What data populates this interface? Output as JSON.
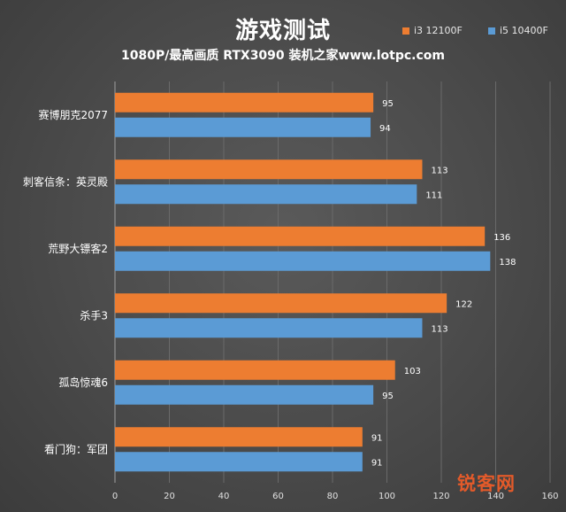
{
  "header": {
    "title": "游戏测试",
    "subtitle": "1080P/最高画质 RTX3090 装机之家www.lotpc.com"
  },
  "watermark": {
    "text": "锐客网"
  },
  "colors": {
    "i3_series": "#ed7d31",
    "i5_series": "#5b9bd5",
    "background": "#4a4a4a",
    "watermark": "#e35a2a"
  },
  "chart_data": {
    "type": "bar",
    "orientation": "horizontal",
    "title": "游戏测试",
    "subtitle": "1080P/最高画质 RTX3090 装机之家www.lotpc.com",
    "categories": [
      "赛博朋克2077",
      "刺客信条：英灵殿",
      "荒野大镖客2",
      "杀手3",
      "孤岛惊魂6",
      "看门狗：军团"
    ],
    "series": [
      {
        "name": "i3 12100F",
        "color": "#ed7d31",
        "values": [
          95,
          113,
          136,
          122,
          103,
          91
        ]
      },
      {
        "name": "i5 10400F",
        "color": "#5b9bd5",
        "values": [
          94,
          111,
          138,
          113,
          95,
          91
        ]
      }
    ],
    "xlim": [
      0,
      160
    ],
    "xticks": [
      0,
      20,
      40,
      60,
      80,
      100,
      120,
      140,
      160
    ],
    "xlabel": "",
    "ylabel": "",
    "legend_position": "top-right",
    "grid": true,
    "data_labels": true
  }
}
